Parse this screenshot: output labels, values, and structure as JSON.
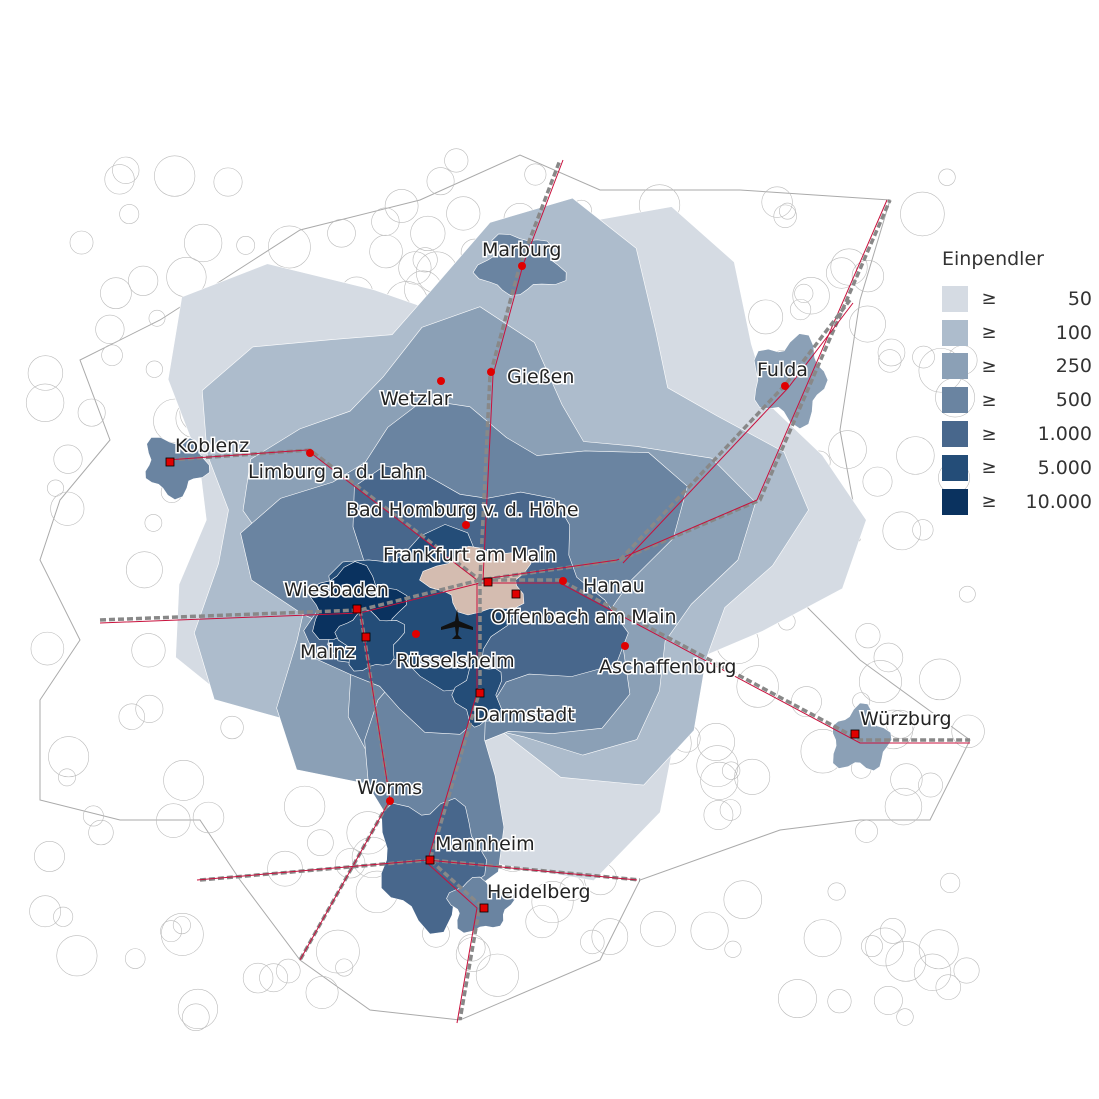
{
  "legend": {
    "title": "Einpendler",
    "symbol": "≥",
    "classes": [
      {
        "label": "50",
        "color": "#d5dbe3"
      },
      {
        "label": "100",
        "color": "#adbccc"
      },
      {
        "label": "250",
        "color": "#8ba0b6"
      },
      {
        "label": "500",
        "color": "#6a84a1"
      },
      {
        "label": "1.000",
        "color": "#48678c"
      },
      {
        "label": "5.000",
        "color": "#244d78"
      },
      {
        "label": "10.000",
        "color": "#0a325f"
      }
    ]
  },
  "colors": {
    "destination": "#d4bcb0",
    "city_marker": "#e00000",
    "rail": "#c8103c",
    "motorway": "#ffffff",
    "boundary": "#999999"
  },
  "airport_icon": "airplane-icon",
  "cities": [
    {
      "name": "Marburg",
      "marker": "circle"
    },
    {
      "name": "Gießen",
      "marker": "circle"
    },
    {
      "name": "Wetzlar",
      "marker": "circle"
    },
    {
      "name": "Fulda",
      "marker": "circle"
    },
    {
      "name": "Koblenz",
      "marker": "square"
    },
    {
      "name": "Limburg a. d. Lahn",
      "marker": "circle"
    },
    {
      "name": "Bad Homburg v. d. Höhe",
      "marker": "circle"
    },
    {
      "name": "Frankfurt am Main",
      "marker": "square"
    },
    {
      "name": "Hanau",
      "marker": "circle"
    },
    {
      "name": "Wiesbaden",
      "marker": "square"
    },
    {
      "name": "Offenbach am Main",
      "marker": "square"
    },
    {
      "name": "Mainz",
      "marker": "square"
    },
    {
      "name": "Rüsselsheim",
      "marker": "circle"
    },
    {
      "name": "Aschaffenburg",
      "marker": "circle"
    },
    {
      "name": "Darmstadt",
      "marker": "square"
    },
    {
      "name": "Würzburg",
      "marker": "square"
    },
    {
      "name": "Worms",
      "marker": "circle"
    },
    {
      "name": "Mannheim",
      "marker": "square"
    },
    {
      "name": "Heidelberg",
      "marker": "square"
    }
  ]
}
